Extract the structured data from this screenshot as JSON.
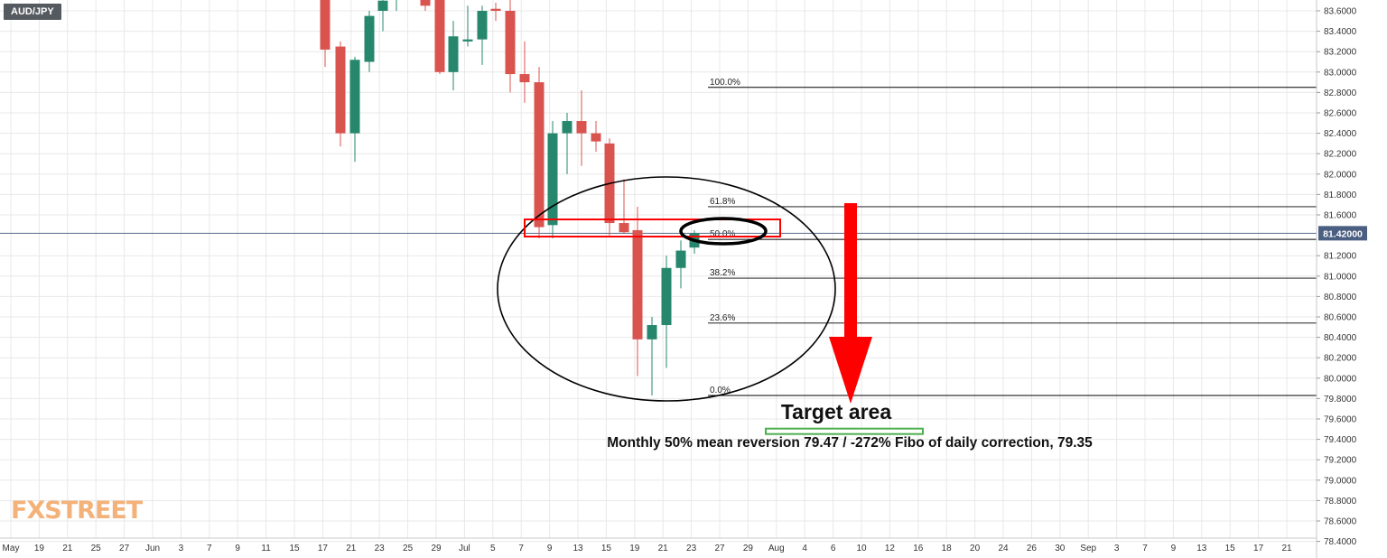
{
  "symbol": "AUD/JPY",
  "watermark": "FXSTREET",
  "colors": {
    "bull": "#26876c",
    "bear": "#d9534f",
    "grid": "#e8e8e8",
    "price_line": "#5a6b8c",
    "price_badge": "#4a5f82",
    "annotation_red": "#ff0000",
    "target_green": "#4caf50"
  },
  "chart_data": {
    "type": "candlestick",
    "title": "AUD/JPY",
    "ylim": [
      78.3,
      83.72
    ],
    "current_price_label": "81.42000",
    "current_price": 81.42,
    "y_ticks": [
      "83.6000",
      "83.4000",
      "83.2000",
      "83.0000",
      "82.8000",
      "82.6000",
      "82.4000",
      "82.2000",
      "82.0000",
      "81.8000",
      "81.6000",
      "81.2000",
      "81.0000",
      "80.8000",
      "80.6000",
      "80.4000",
      "80.2000",
      "80.0000",
      "79.8000",
      "79.6000",
      "79.4000",
      "79.2000",
      "79.0000",
      "78.8000",
      "78.6000",
      "78.4000"
    ],
    "x_ticks": [
      "May",
      "19",
      "21",
      "25",
      "27",
      "Jun",
      "3",
      "7",
      "9",
      "11",
      "15",
      "17",
      "21",
      "23",
      "25",
      "29",
      "Jul",
      "5",
      "7",
      "9",
      "13",
      "15",
      "19",
      "21",
      "23",
      "27",
      "29",
      "Aug",
      "4",
      "6",
      "10",
      "12",
      "16",
      "18",
      "20",
      "24",
      "26",
      "30",
      "Sep",
      "3",
      "7",
      "9",
      "13",
      "15",
      "17",
      "21"
    ],
    "candles": [
      {
        "date": "Jun 16",
        "open": 83.75,
        "high": 83.9,
        "low": 83.05,
        "close": 83.22
      },
      {
        "date": "Jun 17",
        "open": 83.25,
        "high": 83.3,
        "low": 82.27,
        "close": 82.4
      },
      {
        "date": "Jun 18",
        "open": 82.4,
        "high": 83.15,
        "low": 82.12,
        "close": 83.12
      },
      {
        "date": "Jun 21",
        "open": 83.1,
        "high": 83.6,
        "low": 83.0,
        "close": 83.55
      },
      {
        "date": "Jun 22",
        "open": 83.6,
        "high": 83.75,
        "low": 83.4,
        "close": 83.7
      },
      {
        "date": "Jun 23",
        "open": 83.72,
        "high": 83.9,
        "low": 83.6,
        "close": 83.75
      },
      {
        "date": "Jun 25",
        "open": 83.75,
        "high": 83.85,
        "low": 83.6,
        "close": 83.65
      },
      {
        "date": "Jun 28",
        "open": 83.75,
        "high": 83.8,
        "low": 82.98,
        "close": 83.0
      },
      {
        "date": "Jun 29",
        "open": 83.0,
        "high": 83.5,
        "low": 82.82,
        "close": 83.35
      },
      {
        "date": "Jun 30",
        "open": 83.3,
        "high": 83.65,
        "low": 83.25,
        "close": 83.32
      },
      {
        "date": "Jul 1",
        "open": 83.32,
        "high": 83.65,
        "low": 83.07,
        "close": 83.6
      },
      {
        "date": "Jul 2",
        "open": 83.62,
        "high": 83.68,
        "low": 83.5,
        "close": 83.6
      },
      {
        "date": "Jul 5",
        "open": 83.6,
        "high": 83.75,
        "low": 82.8,
        "close": 82.98
      },
      {
        "date": "Jul 6",
        "open": 82.98,
        "high": 83.3,
        "low": 82.7,
        "close": 82.9
      },
      {
        "date": "Jul 7",
        "open": 82.9,
        "high": 83.05,
        "low": 81.37,
        "close": 81.48
      },
      {
        "date": "Jul 8",
        "open": 81.5,
        "high": 82.52,
        "low": 81.37,
        "close": 82.4
      },
      {
        "date": "Jul 9",
        "open": 82.4,
        "high": 82.6,
        "low": 82.0,
        "close": 82.52
      },
      {
        "date": "Jul 12",
        "open": 82.52,
        "high": 82.82,
        "low": 82.08,
        "close": 82.4
      },
      {
        "date": "Jul 13",
        "open": 82.4,
        "high": 82.52,
        "low": 82.22,
        "close": 82.32
      },
      {
        "date": "Jul 14",
        "open": 82.3,
        "high": 82.35,
        "low": 81.4,
        "close": 81.52
      },
      {
        "date": "Jul 15",
        "open": 81.52,
        "high": 81.95,
        "low": 81.42,
        "close": 81.43
      },
      {
        "date": "Jul 16",
        "open": 81.45,
        "high": 81.68,
        "low": 80.02,
        "close": 80.38
      },
      {
        "date": "Jul 19",
        "open": 80.38,
        "high": 80.6,
        "low": 79.83,
        "close": 80.52
      },
      {
        "date": "Jul 20",
        "open": 80.52,
        "high": 81.2,
        "low": 80.1,
        "close": 81.08
      },
      {
        "date": "Jul 21",
        "open": 81.08,
        "high": 81.35,
        "low": 80.88,
        "close": 81.25
      },
      {
        "date": "Jul 22",
        "open": 81.28,
        "high": 81.45,
        "low": 81.22,
        "close": 81.42
      }
    ],
    "fibonacci": [
      {
        "label": "100.0%",
        "price": 82.85
      },
      {
        "label": "61.8%",
        "price": 81.68
      },
      {
        "label": "50.0%",
        "price": 81.36
      },
      {
        "label": "38.2%",
        "price": 80.98
      },
      {
        "label": "23.6%",
        "price": 80.54
      },
      {
        "label": "0.0%",
        "price": 79.83
      }
    ],
    "annotations": {
      "target_title": "Target area",
      "target_note": "Monthly 50% mean reversion 79.47 / -272% Fibo of daily correction, 79.35",
      "target_price": 79.47,
      "zone_high": 81.52,
      "zone_low": 81.38
    }
  }
}
